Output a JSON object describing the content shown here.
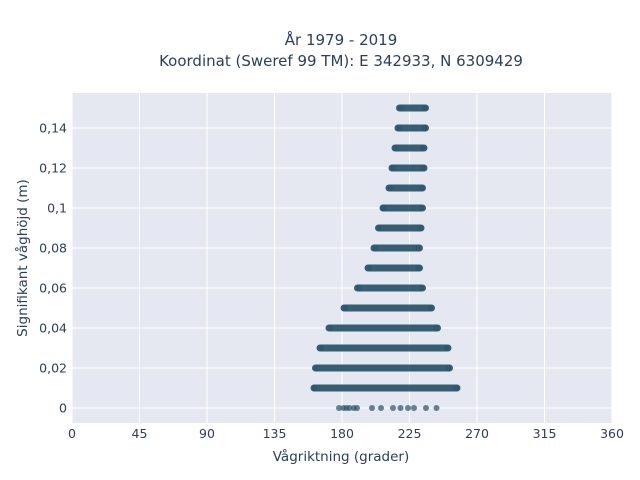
{
  "chart_data": {
    "type": "scatter",
    "title_line1": "År 1979 - 2019",
    "title_line2": "Koordinat (Sweref 99 TM): E 342933, N 6309429",
    "xlabel": "Vågriktning (grader)",
    "ylabel": "Signifikant våghöjd (m)",
    "xlim": [
      0,
      360
    ],
    "ylim": [
      -0.0075,
      0.1575
    ],
    "x_ticks": [
      0,
      45,
      90,
      135,
      180,
      225,
      270,
      315,
      360
    ],
    "x_tick_labels": [
      "0",
      "45",
      "90",
      "135",
      "180",
      "225",
      "270",
      "315",
      "360"
    ],
    "y_ticks": [
      0,
      0.02,
      0.04,
      0.06,
      0.08,
      0.1,
      0.12,
      0.14
    ],
    "y_tick_labels": [
      "0",
      "0,02",
      "0,04",
      "0,06",
      "0,08",
      "0,1",
      "0,12",
      "0,14"
    ],
    "grid": true,
    "colors": {
      "plot_bg": "#e5e8f0",
      "grid": "#ffffff",
      "marker": "#2e566c",
      "text": "#2a3f5f",
      "page_bg": "#ffffff"
    },
    "bands": [
      {
        "y": 0.0,
        "x_min": 178,
        "x_max": 243,
        "scattered_x": [
          178,
          181,
          183,
          185,
          188,
          190,
          200,
          206,
          214,
          219,
          224,
          228,
          236,
          243
        ]
      },
      {
        "y": 0.01,
        "x_min": 160,
        "x_max": 258
      },
      {
        "y": 0.02,
        "x_min": 161,
        "x_max": 253
      },
      {
        "y": 0.03,
        "x_min": 164,
        "x_max": 252
      },
      {
        "y": 0.04,
        "x_min": 170,
        "x_max": 245
      },
      {
        "y": 0.05,
        "x_min": 180,
        "x_max": 241
      },
      {
        "y": 0.06,
        "x_min": 189,
        "x_max": 235
      },
      {
        "y": 0.07,
        "x_min": 196,
        "x_max": 233
      },
      {
        "y": 0.08,
        "x_min": 200,
        "x_max": 233
      },
      {
        "y": 0.09,
        "x_min": 203,
        "x_max": 234
      },
      {
        "y": 0.1,
        "x_min": 206,
        "x_max": 235
      },
      {
        "y": 0.11,
        "x_min": 210,
        "x_max": 235
      },
      {
        "y": 0.12,
        "x_min": 212,
        "x_max": 236
      },
      {
        "y": 0.13,
        "x_min": 214,
        "x_max": 236
      },
      {
        "y": 0.14,
        "x_min": 216,
        "x_max": 237
      },
      {
        "y": 0.15,
        "x_min": 217,
        "x_max": 237
      }
    ]
  }
}
